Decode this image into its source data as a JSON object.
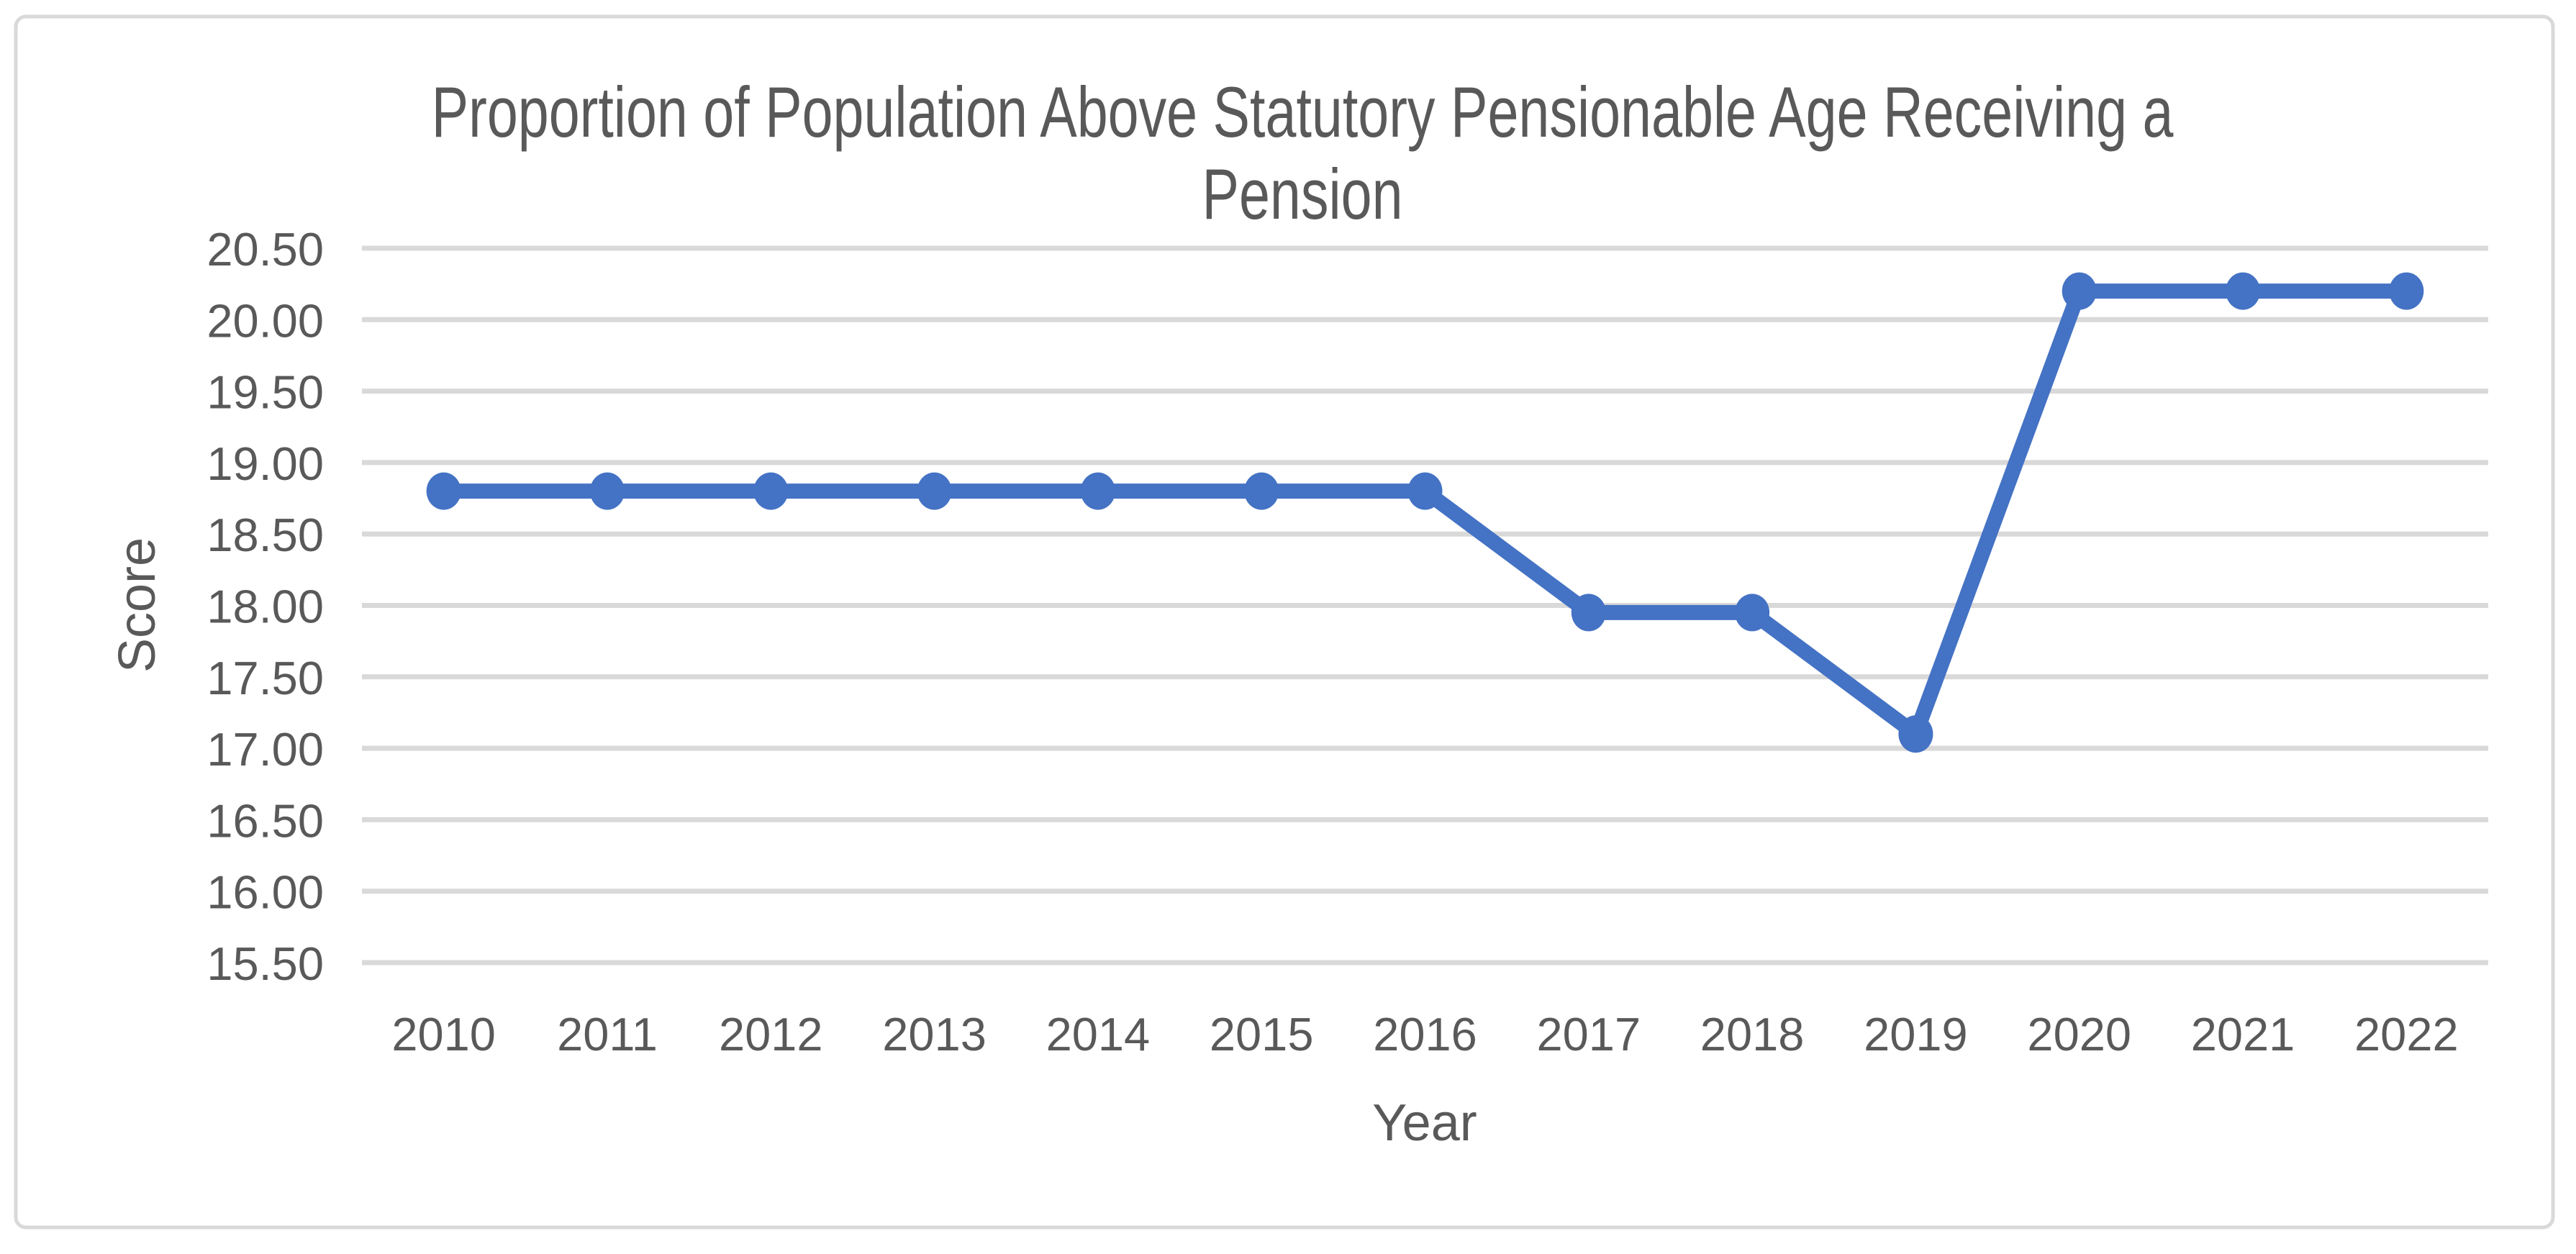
{
  "chart_data": {
    "type": "line",
    "title": "Proportion of Population Above Statutory Pensionable Age Receiving a Pension",
    "title_lines": [
      "Proportion of Population Above Statutory Pensionable Age Receiving a",
      "Pension"
    ],
    "xlabel": "Year",
    "ylabel": "Score",
    "categories": [
      "2010",
      "2011",
      "2012",
      "2013",
      "2014",
      "2015",
      "2016",
      "2017",
      "2018",
      "2019",
      "2020",
      "2021",
      "2022"
    ],
    "series": [
      {
        "name": "Score",
        "values": [
          18.8,
          18.8,
          18.8,
          18.8,
          18.8,
          18.8,
          18.8,
          17.95,
          17.95,
          17.1,
          20.2,
          20.2,
          20.2
        ]
      }
    ],
    "ylim": [
      15.5,
      20.5
    ],
    "ytick_step": 0.5,
    "ytick_labels": [
      "20.50",
      "20.00",
      "19.50",
      "19.00",
      "18.50",
      "18.00",
      "17.50",
      "17.00",
      "16.50",
      "16.00",
      "15.50"
    ],
    "grid": "horizontal",
    "legend_position": "none",
    "markers": "filled-circle"
  },
  "styles": {
    "line_color": "#4472C4",
    "marker_color": "#4472C4",
    "gridline_color": "#D9D9D9",
    "text_color": "#595959",
    "frame_border_color": "#D9D9D9",
    "background_color": "#FFFFFF"
  }
}
